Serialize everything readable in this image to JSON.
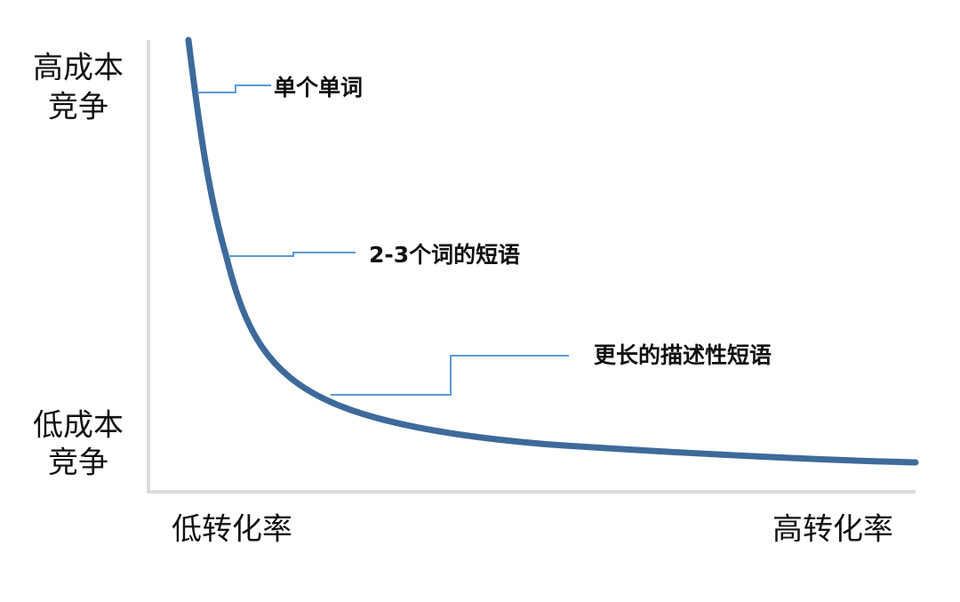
{
  "y_axis": {
    "top_label": [
      "高成本",
      "竞争"
    ],
    "bottom_label": [
      "低成本",
      "竞争"
    ]
  },
  "x_axis": {
    "left_label": "低转化率",
    "right_label": "高转化率"
  },
  "annotations": [
    "单个单词",
    "2-3个词的短语",
    "更长的描述性短语"
  ]
}
